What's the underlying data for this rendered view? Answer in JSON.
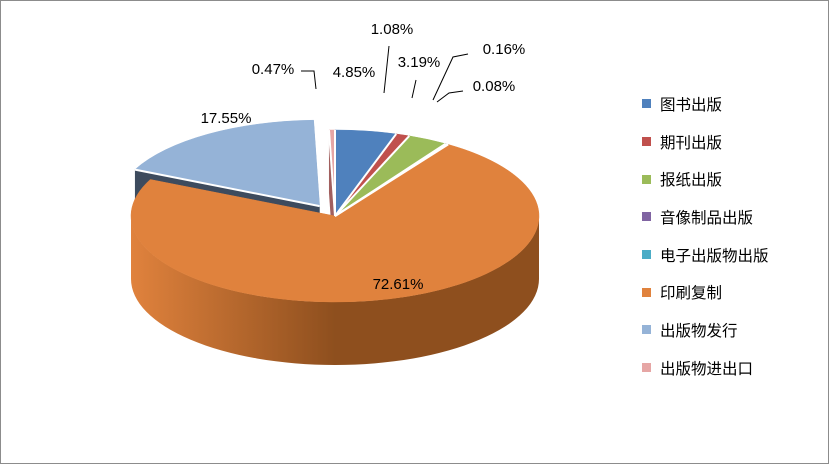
{
  "chart_data": {
    "type": "pie",
    "title": "",
    "legend_position": "right",
    "slices": [
      {
        "name": "图书出版",
        "value": 4.85,
        "label": "4.85%",
        "color": "#4f81bd",
        "side": "#2c4d75"
      },
      {
        "name": "期刊出版",
        "value": 1.08,
        "label": "1.08%",
        "color": "#c0504d",
        "side": "#772c2a"
      },
      {
        "name": "报纸出版",
        "value": 3.19,
        "label": "3.19%",
        "color": "#9bbb59",
        "side": "#5f7530"
      },
      {
        "name": "音像制品出版",
        "value": 0.16,
        "label": "0.16%",
        "color": "#8064a2",
        "side": "#4d3b62"
      },
      {
        "name": "电子出版物出版",
        "value": 0.08,
        "label": "0.08%",
        "color": "#4bacc6",
        "side": "#276a7c"
      },
      {
        "name": "印刷复制",
        "value": 72.61,
        "label": "72.61%",
        "color": "#e0823d",
        "side": "#8e4f1e"
      },
      {
        "name": "出版物发行",
        "value": 17.55,
        "label": "17.55%",
        "color": "#95b3d7",
        "side": "#3d4b5e"
      },
      {
        "name": "出版物进出口",
        "value": 0.47,
        "label": "0.47%",
        "color": "#e6a6a5",
        "side": "#a15f5e"
      }
    ]
  }
}
